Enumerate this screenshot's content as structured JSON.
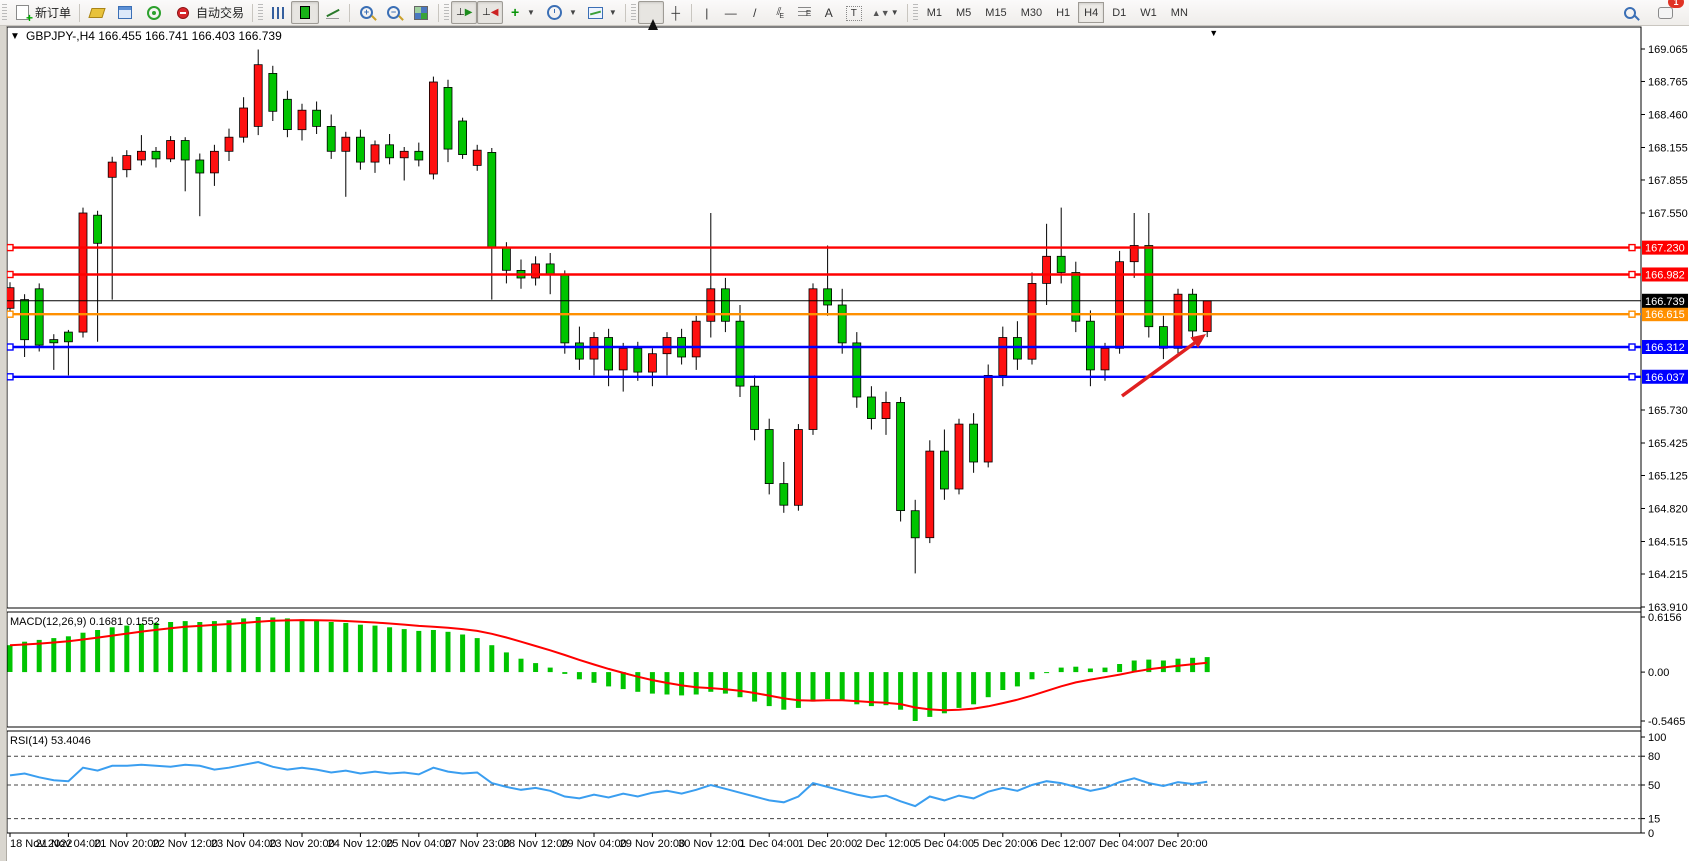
{
  "toolbar": {
    "new_order_label": "新订单",
    "autotrade_label": "自动交易",
    "timeframes": [
      "M1",
      "M5",
      "M15",
      "M30",
      "H1",
      "H4",
      "D1",
      "W1",
      "MN"
    ],
    "active_timeframe": "H4",
    "notification_badge": "1"
  },
  "chart": {
    "title_symbol": "GBPJPY-,H4",
    "title_ohlc": "166.455 166.741 166.403 166.739",
    "macd_label": "MACD(12,26,9) 0.1681 0.1552",
    "rsi_label": "RSI(14) 53.4046",
    "colors": {
      "bull": "#fe1010",
      "bear": "#00c400",
      "wick": "#000000",
      "macd_bar": "#00c400",
      "macd_signal": "#ff0000",
      "rsi_line": "#3a9ef0",
      "line_red": "#ff0000",
      "line_orange": "#ff9000",
      "line_blue": "#0000ff",
      "current_price": "#000000",
      "arrow": "#e02020"
    }
  },
  "chart_data": {
    "type": "candlestick",
    "symbol": "GBPJPY",
    "period": "H4",
    "current_bar": {
      "open": 166.455,
      "high": 166.741,
      "low": 166.403,
      "close": 166.739
    },
    "current_price": 166.739,
    "price_axis_ticks": [
      "169.065",
      "168.765",
      "168.460",
      "168.155",
      "167.855",
      "167.550",
      "165.730",
      "165.425",
      "165.125",
      "164.820",
      "164.515",
      "164.215",
      "163.910"
    ],
    "hlines": [
      {
        "price": 167.23,
        "label": "167.230",
        "color": "red"
      },
      {
        "price": 166.982,
        "label": "166.982",
        "color": "red"
      },
      {
        "price": 166.615,
        "label": "166.615",
        "color": "orange"
      },
      {
        "price": 166.312,
        "label": "166.312",
        "color": "blue"
      },
      {
        "price": 166.037,
        "label": "166.037",
        "color": "blue"
      }
    ],
    "current_price_label": "166.739",
    "time_labels": [
      "18 Nov 2022",
      "21 Nov 04:00",
      "21 Nov 20:00",
      "22 Nov 12:00",
      "23 Nov 04:00",
      "23 Nov 20:00",
      "24 Nov 12:00",
      "25 Nov 04:00",
      "27 Nov 23:00",
      "28 Nov 12:00",
      "29 Nov 04:00",
      "29 Nov 20:00",
      "30 Nov 12:00",
      "1 Dec 04:00",
      "1 Dec 20:00",
      "2 Dec 12:00",
      "5 Dec 04:00",
      "5 Dec 20:00",
      "6 Dec 12:00",
      "7 Dec 04:00",
      "7 Dec 20:00"
    ],
    "label_every_n_candles": 4,
    "candles_ohlc": [
      [
        166.67,
        166.91,
        166.6,
        166.86
      ],
      [
        166.75,
        166.8,
        166.22,
        166.38
      ],
      [
        166.85,
        166.9,
        166.27,
        166.33
      ],
      [
        166.38,
        166.43,
        166.1,
        166.35
      ],
      [
        166.45,
        166.47,
        166.05,
        166.36
      ],
      [
        166.45,
        167.6,
        166.4,
        167.55
      ],
      [
        167.53,
        167.57,
        166.36,
        167.27
      ],
      [
        167.88,
        168.07,
        166.75,
        168.02
      ],
      [
        167.95,
        168.13,
        167.88,
        168.08
      ],
      [
        168.04,
        168.27,
        167.99,
        168.12
      ],
      [
        168.12,
        168.16,
        167.97,
        168.05
      ],
      [
        168.05,
        168.26,
        168.02,
        168.22
      ],
      [
        168.22,
        168.25,
        167.75,
        168.04
      ],
      [
        168.04,
        168.1,
        167.52,
        167.92
      ],
      [
        167.92,
        168.18,
        167.8,
        168.12
      ],
      [
        168.12,
        168.33,
        168.03,
        168.25
      ],
      [
        168.25,
        168.62,
        168.2,
        168.52
      ],
      [
        168.35,
        169.06,
        168.27,
        168.92
      ],
      [
        168.84,
        168.91,
        168.4,
        168.49
      ],
      [
        168.6,
        168.68,
        168.25,
        168.32
      ],
      [
        168.32,
        168.56,
        168.22,
        168.5
      ],
      [
        168.5,
        168.58,
        168.28,
        168.35
      ],
      [
        168.35,
        168.46,
        168.05,
        168.12
      ],
      [
        168.12,
        168.3,
        167.7,
        168.25
      ],
      [
        168.25,
        168.32,
        167.95,
        168.02
      ],
      [
        168.02,
        168.22,
        167.92,
        168.18
      ],
      [
        168.18,
        168.28,
        168.0,
        168.06
      ],
      [
        168.06,
        168.16,
        167.85,
        168.12
      ],
      [
        168.12,
        168.2,
        167.98,
        168.04
      ],
      [
        167.91,
        168.81,
        167.86,
        168.76
      ],
      [
        168.71,
        168.78,
        168.02,
        168.14
      ],
      [
        168.4,
        168.43,
        168.05,
        168.09
      ],
      [
        167.99,
        168.18,
        167.94,
        168.13
      ],
      [
        168.11,
        168.15,
        166.75,
        167.23
      ],
      [
        167.23,
        167.28,
        166.9,
        167.02
      ],
      [
        167.02,
        167.12,
        166.85,
        166.95
      ],
      [
        166.95,
        167.15,
        166.88,
        167.08
      ],
      [
        167.08,
        167.18,
        166.8,
        166.98
      ],
      [
        166.98,
        167.02,
        166.25,
        166.35
      ],
      [
        166.35,
        166.5,
        166.1,
        166.2
      ],
      [
        166.2,
        166.45,
        166.05,
        166.4
      ],
      [
        166.4,
        166.48,
        165.95,
        166.1
      ],
      [
        166.1,
        166.35,
        165.9,
        166.3
      ],
      [
        166.3,
        166.36,
        166.0,
        166.08
      ],
      [
        166.08,
        166.3,
        165.95,
        166.25
      ],
      [
        166.25,
        166.45,
        166.05,
        166.4
      ],
      [
        166.4,
        166.48,
        166.15,
        166.22
      ],
      [
        166.22,
        166.6,
        166.1,
        166.55
      ],
      [
        166.55,
        167.55,
        166.4,
        166.85
      ],
      [
        166.85,
        166.95,
        166.45,
        166.55
      ],
      [
        166.55,
        166.7,
        165.85,
        165.95
      ],
      [
        165.95,
        166.05,
        165.45,
        165.55
      ],
      [
        165.55,
        165.65,
        164.95,
        165.05
      ],
      [
        165.05,
        165.25,
        164.78,
        164.85
      ],
      [
        164.85,
        165.6,
        164.8,
        165.55
      ],
      [
        165.55,
        166.9,
        165.5,
        166.85
      ],
      [
        166.85,
        167.25,
        166.6,
        166.7
      ],
      [
        166.7,
        166.85,
        166.25,
        166.35
      ],
      [
        166.35,
        166.45,
        165.75,
        165.85
      ],
      [
        165.85,
        165.95,
        165.55,
        165.65
      ],
      [
        165.65,
        165.9,
        165.5,
        165.8
      ],
      [
        165.8,
        165.85,
        164.7,
        164.8
      ],
      [
        164.8,
        164.9,
        164.22,
        164.55
      ],
      [
        164.55,
        165.45,
        164.5,
        165.35
      ],
      [
        165.35,
        165.55,
        164.9,
        165.0
      ],
      [
        165.0,
        165.65,
        164.95,
        165.6
      ],
      [
        165.6,
        165.7,
        165.15,
        165.25
      ],
      [
        165.25,
        166.15,
        165.2,
        166.05
      ],
      [
        166.05,
        166.5,
        165.95,
        166.4
      ],
      [
        166.4,
        166.55,
        166.1,
        166.2
      ],
      [
        166.2,
        167.0,
        166.15,
        166.9
      ],
      [
        166.9,
        167.45,
        166.7,
        167.15
      ],
      [
        167.15,
        167.6,
        166.9,
        167.0
      ],
      [
        167.0,
        167.1,
        166.45,
        166.55
      ],
      [
        166.55,
        166.65,
        165.95,
        166.1
      ],
      [
        166.1,
        166.35,
        166.0,
        166.3
      ],
      [
        166.3,
        167.2,
        166.25,
        167.1
      ],
      [
        167.1,
        167.55,
        166.95,
        167.25
      ],
      [
        167.25,
        167.55,
        166.4,
        166.5
      ],
      [
        166.5,
        166.6,
        166.2,
        166.3
      ],
      [
        166.3,
        166.85,
        166.25,
        166.8
      ],
      [
        166.8,
        166.85,
        166.4,
        166.46
      ],
      [
        166.455,
        166.741,
        166.403,
        166.739
      ]
    ],
    "indicators": [
      {
        "name": "MACD",
        "params": "12,26,9",
        "values_label": [
          "0.1681",
          "0.1552"
        ],
        "axis_ticks": [
          "0.6156",
          "0.00",
          "-0.5465"
        ],
        "macd": [
          0.3,
          0.34,
          0.36,
          0.38,
          0.4,
          0.44,
          0.47,
          0.5,
          0.52,
          0.54,
          0.55,
          0.56,
          0.57,
          0.56,
          0.57,
          0.58,
          0.6,
          0.6156,
          0.61,
          0.6,
          0.59,
          0.58,
          0.56,
          0.55,
          0.53,
          0.52,
          0.5,
          0.48,
          0.46,
          0.47,
          0.45,
          0.42,
          0.38,
          0.3,
          0.22,
          0.15,
          0.1,
          0.05,
          -0.02,
          -0.08,
          -0.12,
          -0.16,
          -0.19,
          -0.22,
          -0.24,
          -0.25,
          -0.26,
          -0.25,
          -0.22,
          -0.24,
          -0.28,
          -0.33,
          -0.38,
          -0.42,
          -0.4,
          -0.33,
          -0.3,
          -0.32,
          -0.36,
          -0.38,
          -0.37,
          -0.42,
          -0.5465,
          -0.5,
          -0.46,
          -0.4,
          -0.36,
          -0.28,
          -0.2,
          -0.16,
          -0.08,
          0.0,
          0.05,
          0.06,
          0.04,
          0.05,
          0.09,
          0.13,
          0.14,
          0.13,
          0.15,
          0.16,
          0.1681
        ]
      },
      {
        "name": "RSI",
        "params": "14",
        "values_label": [
          "53.4046"
        ],
        "axis_ticks": [
          "100",
          "80",
          "50",
          "15",
          "0"
        ],
        "levels": [
          80,
          50,
          15
        ],
        "rsi": [
          60,
          62,
          58,
          55,
          54,
          68,
          65,
          70,
          70,
          71,
          70,
          69,
          71,
          70,
          66,
          68,
          71,
          74,
          69,
          66,
          68,
          66,
          63,
          65,
          62,
          64,
          62,
          63,
          61,
          68,
          64,
          62,
          63,
          52,
          48,
          45,
          47,
          44,
          38,
          36,
          40,
          37,
          41,
          38,
          42,
          44,
          41,
          45,
          50,
          46,
          42,
          38,
          34,
          32,
          38,
          52,
          48,
          44,
          40,
          37,
          39,
          33,
          28,
          38,
          34,
          39,
          36,
          43,
          47,
          44,
          50,
          54,
          52,
          48,
          44,
          47,
          53,
          57,
          52,
          49,
          53,
          51,
          53.4
        ]
      }
    ],
    "annotations": [
      {
        "type": "arrow",
        "from_xy": [
          1122,
          396
        ],
        "to_xy": [
          1206,
          334
        ]
      }
    ]
  }
}
